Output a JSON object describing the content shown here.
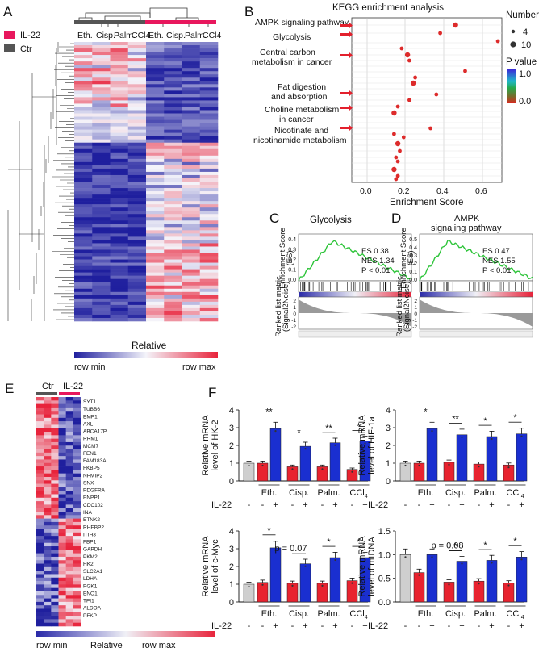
{
  "panels": {
    "A": "A",
    "B": "B",
    "C": "C",
    "D": "D",
    "E": "E",
    "F": "F"
  },
  "panelA": {
    "legend": [
      {
        "label": "IL-22",
        "color": "#e8175d"
      },
      {
        "label": "Ctr",
        "color": "#555555"
      }
    ],
    "columns": [
      "Eth.",
      "Cisp.",
      "Palm.",
      "CCl4",
      "Eth.",
      "Cisp.",
      "Palm.",
      "CCl4"
    ],
    "colorbar": {
      "title": "Relative",
      "min": "row min",
      "max": "row max"
    },
    "colors": {
      "low": "#1f1f9e",
      "mid": "#f2f2f8",
      "high": "#e8233b"
    }
  },
  "panelB": {
    "title": "KEGG enrichment analysis",
    "xlabel": "Enrichment Score",
    "xticks": [
      "0.0",
      "0.2",
      "0.4",
      "0.6"
    ],
    "terms": [
      "AMPK signaling pathway",
      "Glycolysis",
      "Central carbon",
      "metabolism in cancer",
      "Fat digestion",
      "and absorption",
      "Choline metabolism",
      "in cancer",
      "Nicotinate and",
      "nicotinamide metabolism"
    ],
    "size_legend": {
      "title": "Number",
      "values": [
        "4",
        "10"
      ]
    },
    "color_legend": {
      "title": "P value",
      "high": "1.0",
      "low": "0.0"
    }
  },
  "panelC": {
    "title": "Glycolysis",
    "ylabel_top": "Enrichment Score (ES)",
    "ylabel_bottom": "Ranked list metric (Signal2Noise)",
    "es": "ES 0.38",
    "nes": "NES 1.34",
    "p": "P < 0.01",
    "yticks": [
      "0.4",
      "0.3",
      "0.2",
      "0.1",
      "0.0"
    ],
    "ymetric": [
      "2",
      "1",
      "0",
      "-1",
      "-2"
    ]
  },
  "panelD": {
    "title_line1": "AMPK",
    "title_line2": "signaling pathway",
    "ylabel_top": "Enrichment Score (ES)",
    "ylabel_bottom": "Ranked list metric (Signal2Noise)",
    "es": "ES 0.47",
    "nes": "NES 1.55",
    "p": "P < 0.01",
    "yticks": [
      "0.5",
      "0.4",
      "0.3",
      "0.2",
      "0.1",
      "0.0"
    ],
    "ymetric": [
      "2",
      "1",
      "0",
      "-1",
      "-2"
    ]
  },
  "panelE": {
    "groups": [
      "Ctr",
      "IL-22"
    ],
    "colorbar": {
      "min": "row min",
      "title": "Relative",
      "max": "row max"
    },
    "genes": [
      "SYT1",
      "TUBB6",
      "EMP1",
      "AXL",
      "ABCA17P",
      "RRM1",
      "MCM7",
      "FEN1",
      "FAM183A",
      "FKBP5",
      "NPMIP2",
      "SNX",
      "PDGFRA",
      "ENPP1",
      "CDC102",
      "INA",
      "ETNK2",
      "RHEBP2",
      "ITIH3",
      "FBP1",
      "GAPDH",
      "PKM2",
      "HK2",
      "SLC2A1",
      "LDHA",
      "PGK1",
      "ENO1",
      "TPI1",
      "ALDOA",
      "PFKP"
    ]
  },
  "chart_data": [
    {
      "type": "bar",
      "id": "F1",
      "ylabel_line1": "Relative mRNA",
      "ylabel_line2": "level of HK-2",
      "ylim": [
        0,
        4
      ],
      "yticks": [
        "0",
        "1",
        "2",
        "3",
        "4"
      ],
      "groups": [
        "Eth.",
        "Cisp.",
        "Palm.",
        "CCl4"
      ],
      "control": 1.0,
      "ctr": [
        1.0,
        0.8,
        0.8,
        0.65
      ],
      "il22": [
        2.95,
        1.95,
        2.15,
        2.25
      ],
      "sig": [
        "**",
        "*",
        "**",
        "*"
      ],
      "pval": "",
      "treat_label": "IL-22"
    },
    {
      "type": "bar",
      "id": "F2",
      "ylabel_line1": "Relative mRNA",
      "ylabel_line2": "level of HIF-1a",
      "ylim": [
        0,
        4
      ],
      "yticks": [
        "0",
        "1",
        "2",
        "3",
        "4"
      ],
      "groups": [
        "Eth.",
        "Cisp.",
        "Palm.",
        "CCl4"
      ],
      "control": 1.0,
      "ctr": [
        1.0,
        1.05,
        0.95,
        0.9
      ],
      "il22": [
        2.95,
        2.6,
        2.5,
        2.65
      ],
      "sig": [
        "*",
        "**",
        "*",
        "*"
      ],
      "pval": "",
      "treat_label": "IL-22"
    },
    {
      "type": "bar",
      "id": "F3",
      "ylabel_line1": "Relative mRNA",
      "ylabel_line2": "level of c-Myc",
      "ylim": [
        0,
        4
      ],
      "yticks": [
        "0",
        "1",
        "2",
        "3",
        "4"
      ],
      "groups": [
        "Eth.",
        "Cisp.",
        "Palm.",
        "CCl4"
      ],
      "control": 1.0,
      "ctr": [
        1.1,
        1.05,
        1.05,
        1.2
      ],
      "il22": [
        3.05,
        2.15,
        2.5,
        2.5
      ],
      "sig": [
        "*",
        "",
        "*",
        "*"
      ],
      "pval": "p = 0.07",
      "treat_label": "IL-22"
    },
    {
      "type": "bar",
      "id": "F4",
      "ylabel_line1": "Relative mRNA",
      "ylabel_line2": "level of mtDNA",
      "ylim": [
        0,
        1.5
      ],
      "yticks": [
        "0.0",
        "0.5",
        "1.0",
        "1.5"
      ],
      "groups": [
        "Eth.",
        "Cisp.",
        "Palm.",
        "CCl4"
      ],
      "control": 1.0,
      "ctr": [
        0.62,
        0.42,
        0.44,
        0.4
      ],
      "il22": [
        1.0,
        0.86,
        0.88,
        0.95
      ],
      "sig": [
        "",
        "*",
        "*",
        "*"
      ],
      "pval": "p = 0.08",
      "treat_label": "IL-22"
    }
  ]
}
